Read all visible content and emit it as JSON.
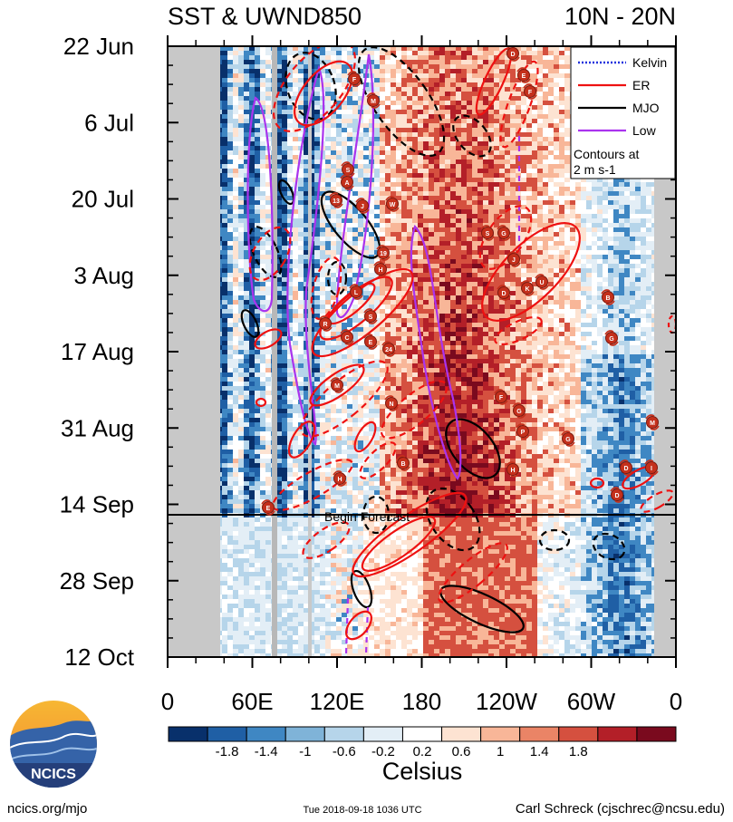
{
  "chart_data": {
    "type": "heatmap",
    "title_left": "SST & UWND850",
    "title_right": "10N - 20N",
    "y_ticks": [
      "22 Jun",
      "6 Jul",
      "20 Jul",
      "3 Aug",
      "17 Aug",
      "31 Aug",
      "14 Sep",
      "28 Sep",
      "12 Oct"
    ],
    "x_ticks": [
      "0",
      "60E",
      "120E",
      "180",
      "120W",
      "60W",
      "0"
    ],
    "colorbar": {
      "label": "Celsius",
      "tick_labels": [
        "-1.8",
        "-1.4",
        "-1",
        "-0.6",
        "-0.2",
        "0.2",
        "0.6",
        "1",
        "1.4",
        "1.8"
      ],
      "colors": [
        "#08306b",
        "#1f5fa5",
        "#3f87c3",
        "#7fb3d8",
        "#b6d5ea",
        "#e3eef6",
        "#ffffff",
        "#fde3d2",
        "#f8b698",
        "#ea8466",
        "#d5503f",
        "#b31f28",
        "#7a0a1e"
      ]
    },
    "legend": {
      "position": "top-right",
      "items": [
        {
          "name": "Kelvin",
          "color": "#2233dd",
          "style": "dotted"
        },
        {
          "name": "ER",
          "color": "#ee1111",
          "style": "solid"
        },
        {
          "name": "MJO",
          "color": "#000000",
          "style": "solid"
        },
        {
          "name": "Low",
          "color": "#aa33ee",
          "style": "solid"
        }
      ],
      "note_line1": "Contours at",
      "note_line2": "2 m s-1"
    },
    "forecast_label": "Begin Forecast",
    "forecast_date": "17 Sep",
    "storm_labels": [
      "D",
      "E",
      "F",
      "F",
      "M",
      "S",
      "A",
      "13",
      "J",
      "W",
      "19",
      "G",
      "S",
      "H",
      "J",
      "K",
      "U",
      "D",
      "B",
      "L",
      "R",
      "S",
      "C",
      "E",
      "24",
      "G",
      "M",
      "N",
      "F",
      "G",
      "M",
      "P",
      "G",
      "B",
      "H",
      "H",
      "D",
      "I"
    ]
  },
  "footer": {
    "logo_text": "NCICS",
    "url": "ncics.org/mjo",
    "timestamp": "Tue 2018-09-18 1036 UTC",
    "author": "Carl Schreck (cjschrec@ncsu.edu)"
  }
}
